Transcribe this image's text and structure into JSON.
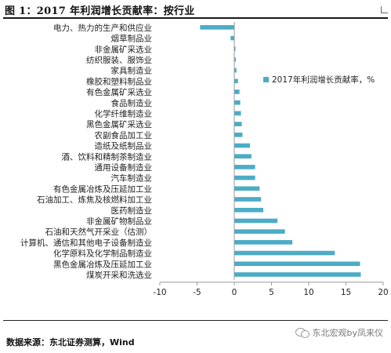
{
  "header": {
    "title": "图 1：2017 年利润增长贡献率：按行业"
  },
  "chart_data": {
    "type": "bar",
    "orientation": "horizontal",
    "title": "",
    "xlabel": "",
    "ylabel": "",
    "categories": [
      "电力、热力的生产和供应业",
      "烟草制品业",
      "非金属矿采选业",
      "纺织服装、服饰业",
      "家具制造业",
      "橡胶和塑料制品业",
      "有色金属矿采选业",
      "食品制造业",
      "化学纤维制造业",
      "黑色金属矿采选业",
      "农副食品加工业",
      "造纸及纸制品业",
      "酒、饮料和精制茶制造业",
      "通用设备制造业",
      "汽车制造业",
      "有色金属冶炼及压延加工业",
      "石油加工、炼焦及核燃料加工业",
      "医药制造业",
      "非金属矿物制品业",
      "石油和天然气开采业（估测）",
      "计算机、通信和其他电子设备制造业",
      "化学原料及化学制品制造业",
      "黑色金属冶炼及压延加工业",
      "煤炭开采和洗选业"
    ],
    "series": [
      {
        "name": "2017年利润增长贡献率，%",
        "color": "#4bacc6",
        "values": [
          -4.6,
          -0.5,
          0.1,
          0.2,
          0.3,
          0.5,
          0.7,
          0.8,
          0.9,
          1.0,
          1.1,
          2.1,
          2.3,
          2.8,
          2.8,
          3.4,
          3.6,
          3.9,
          5.8,
          6.8,
          7.8,
          13.5,
          16.9,
          17.0
        ]
      }
    ],
    "xlim": [
      -10,
      20
    ],
    "xticks": [
      -10,
      -5,
      0,
      5,
      10,
      15,
      20
    ],
    "grid": false,
    "legend_position": "right"
  },
  "footer": {
    "source_label": "数据来源：",
    "source_text": "东北证券测算，Wind",
    "watermark": "东北宏观by凤来仪"
  }
}
